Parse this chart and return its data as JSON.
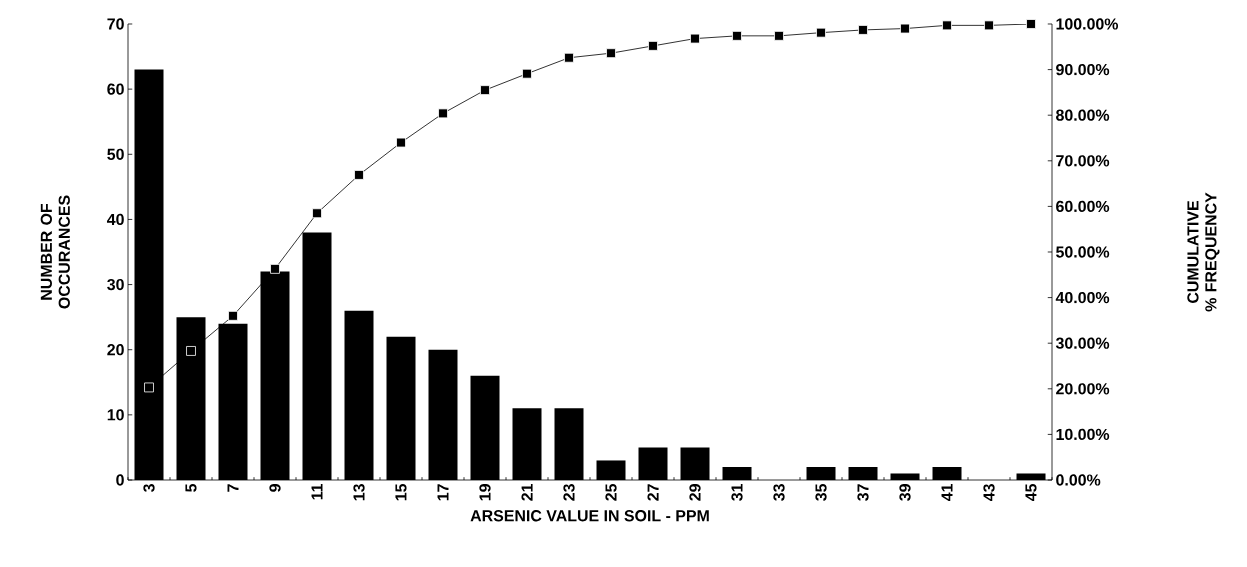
{
  "chart_data": {
    "type": "bar",
    "xlabel": "ARSENIC VALUE IN SOIL - PPM",
    "ylabel": "NUMBER OF OCCURANCES",
    "y2label": "CUMULATIVE % FREQUENCY",
    "categories": [
      "3",
      "5",
      "7",
      "9",
      "11",
      "13",
      "15",
      "17",
      "19",
      "21",
      "23",
      "25",
      "27",
      "29",
      "31",
      "33",
      "35",
      "37",
      "39",
      "41",
      "43",
      "45"
    ],
    "series": [
      {
        "color": "#000000",
        "values": [
          63,
          25,
          24,
          32,
          38,
          26,
          22,
          20,
          16,
          11,
          11,
          3,
          5,
          5,
          2,
          0,
          2,
          2,
          1,
          2,
          0,
          1
        ]
      },
      {
        "type": "line",
        "axis": "y2",
        "color": "#000000",
        "marker": "square",
        "values": [
          20.3,
          28.3,
          36.0,
          46.3,
          58.5,
          66.9,
          74.0,
          80.4,
          85.5,
          89.1,
          92.6,
          93.6,
          95.2,
          96.8,
          97.4,
          97.4,
          98.1,
          98.7,
          99.0,
          99.7,
          99.7,
          100.0
        ]
      }
    ],
    "ylim": [
      0,
      70
    ],
    "yticks": [
      0,
      10,
      20,
      30,
      40,
      50,
      60,
      70
    ],
    "y2lim": [
      0,
      100
    ],
    "y2ticks": [
      {
        "value": 0,
        "label": "0.00%"
      },
      {
        "value": 10,
        "label": "10.00%"
      },
      {
        "value": 20,
        "label": "20.00%"
      },
      {
        "value": 30,
        "label": "30.00%"
      },
      {
        "value": 40,
        "label": "40.00%"
      },
      {
        "value": 50,
        "label": "50.00%"
      },
      {
        "value": 60,
        "label": "60.00%"
      },
      {
        "value": 70,
        "label": "70.00%"
      },
      {
        "value": 80,
        "label": "80.00%"
      },
      {
        "value": 90,
        "label": "90.00%"
      },
      {
        "value": 100,
        "label": "100.00%"
      }
    ]
  }
}
